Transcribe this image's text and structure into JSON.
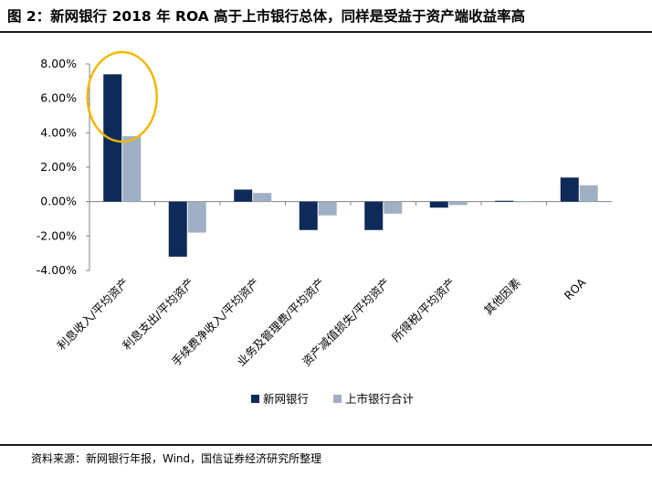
{
  "title": "图 2：新网银行 2018 年 ROA 高于上市银行总体，同样是受益于资产端收益率高",
  "source": "资料来源：新网银行年报，Wind，国信证券经济研究所整理",
  "colors": {
    "series1": "#0e2a59",
    "series2": "#9fb0c4",
    "highlight": "#f2b800",
    "axis": "#808080"
  },
  "chart_data": {
    "type": "bar",
    "categories": [
      "利息收入/平均资产",
      "利息支出/平均资产",
      "手续费净收入/平均资产",
      "业务及管理费/平均资产",
      "资产减值损失/平均资产",
      "所得税/平均资产",
      "其他因素",
      "ROA"
    ],
    "series": [
      {
        "name": "新网银行",
        "values": [
          7.4,
          -3.2,
          0.7,
          -1.65,
          -1.65,
          -0.35,
          0.05,
          1.4
        ]
      },
      {
        "name": "上市银行合计",
        "values": [
          3.8,
          -1.8,
          0.5,
          -0.8,
          -0.7,
          -0.2,
          0.02,
          0.95
        ]
      }
    ],
    "yticks": [
      "8.00%",
      "6.00%",
      "4.00%",
      "2.00%",
      "0.00%",
      "-2.00%",
      "-4.00%"
    ],
    "ylim": [
      -4,
      8
    ],
    "legend_position": "bottom",
    "grid": false
  }
}
